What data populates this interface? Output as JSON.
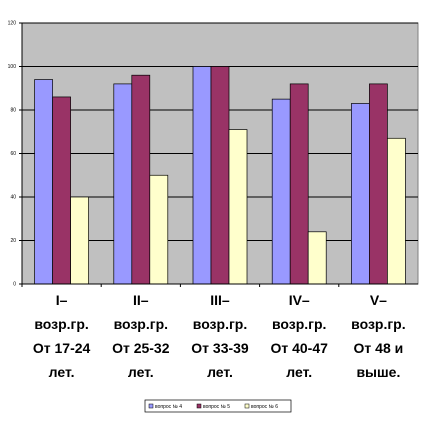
{
  "chart_data": {
    "type": "bar",
    "categories": [
      "I–\nвозр.гр.\nОт 17-24\nлет.",
      "II–\nвозр.гр.\nОт 25-32\nлет.",
      "III–\nвозр.гр.\nОт 33-39\nлет.",
      "IV–\nвозр.гр.\nОт 40-47\nлет.",
      "V–\nвозр.гр.\nОт 48 и\nвыше."
    ],
    "series": [
      {
        "name": "вопрос № 4",
        "color": "#9999ff",
        "values": [
          94,
          92,
          100,
          85,
          83
        ]
      },
      {
        "name": "вопрос № 5",
        "color": "#993366",
        "values": [
          86,
          96,
          100,
          92,
          92
        ]
      },
      {
        "name": "вопрос № 6",
        "color": "#ffffcc",
        "values": [
          40,
          50,
          71,
          24,
          67
        ]
      }
    ],
    "ylim": [
      0,
      120
    ],
    "yticks": [
      0,
      20,
      40,
      60,
      80,
      100,
      120
    ],
    "grid": true,
    "legend": "bottom"
  }
}
